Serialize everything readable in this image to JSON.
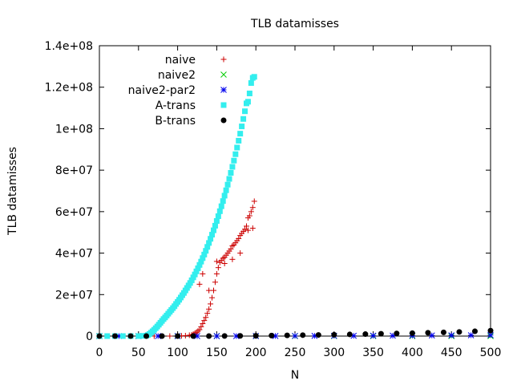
{
  "chart_data": {
    "type": "scatter",
    "title": "TLB datamisses",
    "xlabel": "N",
    "ylabel": "TLB datamisses",
    "xlim": [
      0,
      500
    ],
    "ylim": [
      0,
      140000000
    ],
    "xticks": [
      "0",
      "50",
      "100",
      "150",
      "200",
      "250",
      "300",
      "350",
      "400",
      "450",
      "500"
    ],
    "yticks": [
      "0",
      "2e+07",
      "4e+07",
      "6e+07",
      "8e+07",
      "1e+08",
      "1.2e+08",
      "1.4e+08"
    ],
    "grid": false,
    "legend_position": "top-left",
    "series": [
      {
        "name": "naive",
        "marker": "plus",
        "color": "#cc0000",
        "x": [
          0,
          10,
          20,
          30,
          40,
          50,
          60,
          70,
          80,
          90,
          100,
          105,
          110,
          115,
          118,
          120,
          122,
          124,
          126,
          128,
          130,
          132,
          134,
          136,
          138,
          140,
          142,
          144,
          146,
          148,
          150,
          152,
          154,
          156,
          158,
          160,
          162,
          164,
          166,
          168,
          170,
          172,
          174,
          176,
          178,
          180,
          182,
          184,
          186,
          188,
          190,
          192,
          194,
          196,
          198,
          128,
          132,
          140,
          150,
          160,
          170,
          180,
          190,
          196
        ],
        "y": [
          0,
          0,
          0,
          0,
          0,
          0,
          0,
          0,
          0,
          0,
          50000,
          100000,
          200000,
          400000,
          600000,
          900000,
          1300000,
          1800000,
          2400000,
          3100000,
          4500000,
          6000000,
          7500000,
          9000000,
          11000000,
          13000000,
          15500000,
          18500000,
          22000000,
          26000000,
          30000000,
          33000000,
          35500000,
          36500000,
          37500000,
          38000000,
          39000000,
          40000000,
          41000000,
          42000000,
          43500000,
          44000000,
          45000000,
          46000000,
          47000000,
          48500000,
          49500000,
          50500000,
          51500000,
          53000000,
          57000000,
          58000000,
          60000000,
          62000000,
          65000000,
          25000000,
          30000000,
          22000000,
          36000000,
          35000000,
          37000000,
          40000000,
          51000000,
          52000000
        ]
      },
      {
        "name": "naive2",
        "marker": "x",
        "color": "#00cc00",
        "x": [
          0,
          50,
          100,
          150,
          200,
          250,
          300,
          350,
          400,
          450,
          500
        ],
        "y": [
          0,
          0,
          0,
          0,
          0,
          0,
          0,
          0,
          0,
          0,
          0
        ]
      },
      {
        "name": "naive2-par2",
        "marker": "star",
        "color": "#0000ee",
        "x": [
          0,
          25,
          50,
          75,
          100,
          125,
          150,
          175,
          200,
          225,
          250,
          275,
          300,
          325,
          350,
          375,
          400,
          425,
          450,
          475,
          500
        ],
        "y": [
          0,
          0,
          0,
          0,
          0,
          0,
          0,
          0,
          50000,
          60000,
          80000,
          100000,
          120000,
          150000,
          180000,
          200000,
          250000,
          300000,
          350000,
          400000,
          450000
        ]
      },
      {
        "name": "A-trans",
        "marker": "square",
        "color": "#33eeee",
        "x": [
          0,
          10,
          20,
          30,
          40,
          50,
          55,
          60,
          62,
          64,
          66,
          68,
          70,
          72,
          74,
          76,
          78,
          80,
          82,
          84,
          86,
          88,
          90,
          92,
          94,
          96,
          98,
          100,
          102,
          104,
          106,
          108,
          110,
          112,
          114,
          116,
          118,
          120,
          122,
          124,
          126,
          128,
          130,
          132,
          134,
          136,
          138,
          140,
          142,
          144,
          146,
          148,
          150,
          152,
          154,
          156,
          158,
          160,
          162,
          164,
          166,
          168,
          170,
          172,
          174,
          176,
          178,
          180,
          182,
          184,
          186,
          188,
          190,
          192,
          194,
          196,
          198
        ],
        "y": [
          0,
          0,
          0,
          0,
          0,
          0,
          100000,
          200000,
          500000,
          1000000,
          1600000,
          2300000,
          3000000,
          3800000,
          4600000,
          5500000,
          6400000,
          7300000,
          8200000,
          9000000,
          9900000,
          10800000,
          11700000,
          12600000,
          13500000,
          14400000,
          15500000,
          16500000,
          17500000,
          18600000,
          19700000,
          20800000,
          22000000,
          23200000,
          24400000,
          25600000,
          26900000,
          28300000,
          29700000,
          31200000,
          32700000,
          34300000,
          35900000,
          37600000,
          39300000,
          41100000,
          43000000,
          44900000,
          46900000,
          48900000,
          51000000,
          53200000,
          55500000,
          57800000,
          60200000,
          62600000,
          65100000,
          67700000,
          70300000,
          73000000,
          75800000,
          78700000,
          81600000,
          84600000,
          87700000,
          90900000,
          94200000,
          97600000,
          101100000,
          104700000,
          108400000,
          112200000,
          113000000,
          117000000,
          122000000,
          124500000,
          125000000
        ]
      },
      {
        "name": "B-trans",
        "marker": "circle",
        "color": "#000000",
        "x": [
          0,
          20,
          40,
          60,
          80,
          100,
          120,
          140,
          160,
          180,
          200,
          220,
          240,
          260,
          280,
          300,
          320,
          340,
          360,
          380,
          400,
          420,
          440,
          460,
          480,
          500
        ],
        "y": [
          0,
          0,
          0,
          0,
          0,
          0,
          0,
          0,
          50000,
          100000,
          150000,
          250000,
          350000,
          450000,
          550000,
          650000,
          800000,
          950000,
          1100000,
          1250000,
          1400000,
          1600000,
          1800000,
          2000000,
          2300000,
          2600000
        ]
      }
    ]
  }
}
